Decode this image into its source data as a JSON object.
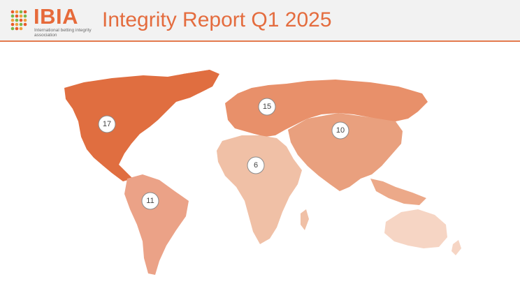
{
  "header": {
    "logo_text": "IBIA",
    "logo_subtitle": "International betting integrity association",
    "title": "Integrity Report Q1 2025"
  },
  "colors": {
    "accent": "#e46c3e",
    "north_america": "#e06e40",
    "europe_asia": "#e8906a",
    "south_america": "#eba287",
    "africa": "#f0c0a6",
    "oceania": "#f6d5c4"
  },
  "map": {
    "regions": [
      {
        "name": "North America",
        "count": "17"
      },
      {
        "name": "Europe",
        "count": "15"
      },
      {
        "name": "Asia",
        "count": "10"
      },
      {
        "name": "Africa",
        "count": "6"
      },
      {
        "name": "South America",
        "count": "11"
      }
    ]
  }
}
